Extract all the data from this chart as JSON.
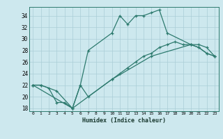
{
  "xlabel": "Humidex (Indice chaleur)",
  "bg_color": "#cde8ee",
  "grid_color": "#aacdd6",
  "line_color": "#2d7a6e",
  "xlim": [
    -0.5,
    23.5
  ],
  "ylim": [
    17.5,
    35.5
  ],
  "xticks": [
    0,
    1,
    2,
    3,
    4,
    5,
    6,
    7,
    8,
    9,
    10,
    11,
    12,
    13,
    14,
    15,
    16,
    17,
    18,
    19,
    20,
    21,
    22,
    23
  ],
  "yticks": [
    18,
    20,
    22,
    24,
    26,
    28,
    30,
    32,
    34
  ],
  "line1_x": [
    0,
    1,
    2,
    3,
    4,
    5,
    6,
    7,
    10,
    11,
    12,
    13,
    14,
    15,
    16,
    17,
    20,
    21,
    22,
    23
  ],
  "line1_y": [
    22,
    22,
    21.5,
    19,
    19,
    18,
    22,
    28,
    31,
    34,
    32.5,
    34,
    34,
    34.5,
    35,
    31,
    29,
    29,
    28.5,
    27
  ],
  "line2_x": [
    0,
    1,
    3,
    5,
    6,
    7,
    10,
    11,
    12,
    13,
    14,
    15,
    16,
    17,
    18,
    19,
    20,
    21,
    22,
    23
  ],
  "line2_y": [
    22,
    22,
    21,
    18,
    22,
    20,
    23,
    24,
    25,
    26,
    27,
    27.5,
    28.5,
    29,
    29.5,
    29,
    29,
    28.5,
    27.5,
    27
  ],
  "line3_x": [
    0,
    5,
    10,
    15,
    20,
    21,
    22,
    23
  ],
  "line3_y": [
    22,
    18,
    23,
    27,
    29,
    28.5,
    27.5,
    27
  ]
}
